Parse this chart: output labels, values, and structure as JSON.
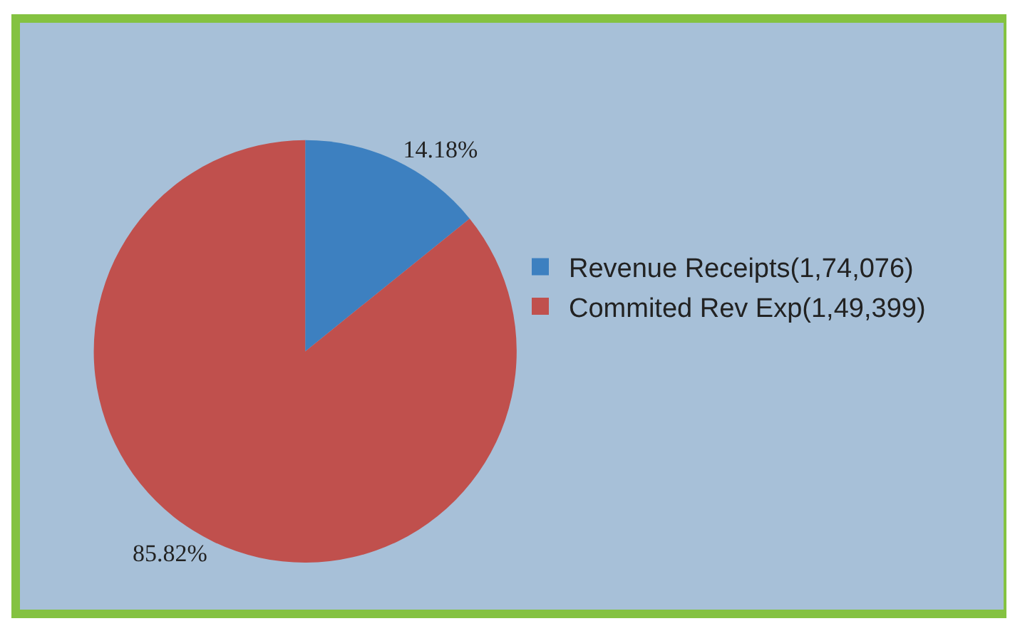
{
  "chart_data": {
    "type": "pie",
    "categories": [
      "Revenue Receipts(1,74,076)",
      "Commited Rev Exp(1,49,399)"
    ],
    "values": [
      14.18,
      85.82
    ],
    "colors": [
      "#3d80c0",
      "#c0504d"
    ],
    "value_labels": [
      "14.18%",
      "85.82%"
    ],
    "legend": "right"
  }
}
